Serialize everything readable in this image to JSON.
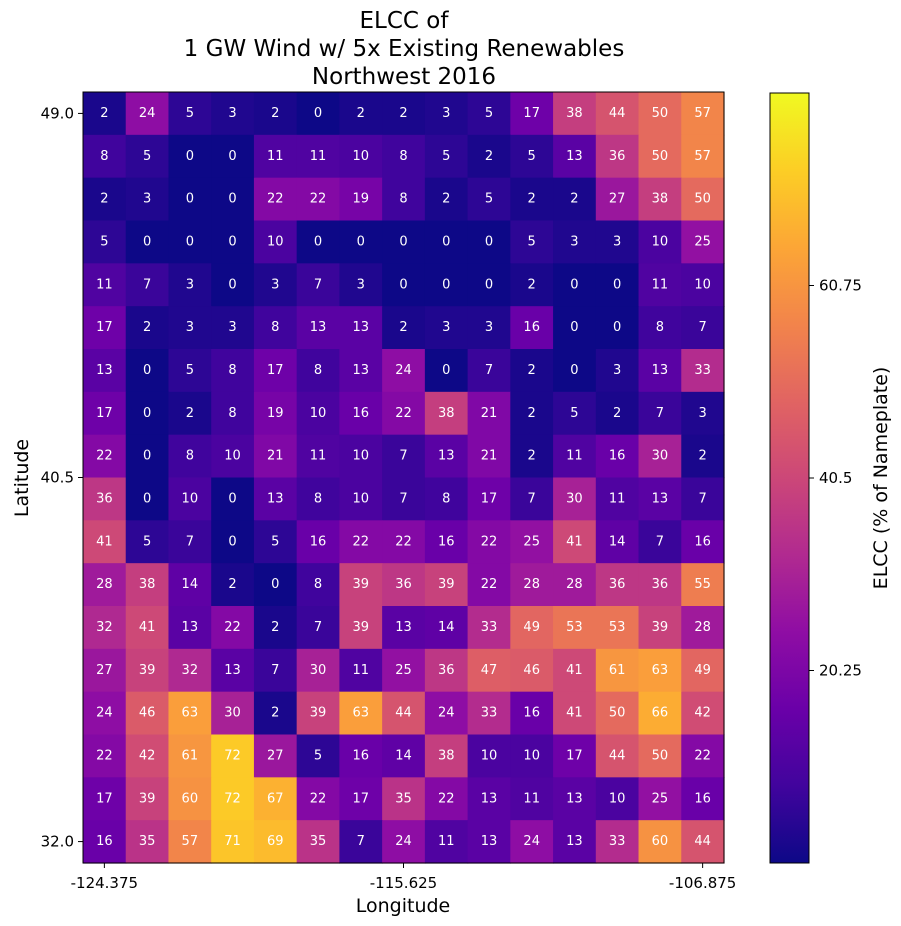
{
  "chart_data": {
    "type": "heatmap",
    "title": [
      "ELCC of",
      "1 GW Wind w/ 5x Existing Renewables",
      "Northwest 2016"
    ],
    "xlabel": "Longitude",
    "ylabel": "Latitude",
    "colorbar_label": "ELCC (% of Nameplate)",
    "colormap": "plasma",
    "color_range": [
      0,
      81
    ],
    "x_ticks": [
      "-124.375",
      "-115.625",
      "-106.875"
    ],
    "y_ticks": [
      "49.0",
      "40.5",
      "32.0"
    ],
    "colorbar_ticks": [
      "20.25",
      "40.5",
      "60.75"
    ],
    "rows": [
      [
        2,
        24,
        5,
        3,
        2,
        0,
        2,
        2,
        3,
        5,
        17,
        38,
        44,
        50,
        57
      ],
      [
        8,
        5,
        0,
        0,
        11,
        11,
        10,
        8,
        5,
        2,
        5,
        13,
        36,
        50,
        57
      ],
      [
        2,
        3,
        0,
        0,
        22,
        22,
        19,
        8,
        2,
        5,
        2,
        2,
        27,
        38,
        50
      ],
      [
        5,
        0,
        0,
        0,
        10,
        0,
        0,
        0,
        0,
        0,
        5,
        3,
        3,
        10,
        25
      ],
      [
        11,
        7,
        3,
        0,
        3,
        7,
        3,
        0,
        0,
        0,
        2,
        0,
        0,
        11,
        10
      ],
      [
        17,
        2,
        3,
        3,
        8,
        13,
        13,
        2,
        3,
        3,
        16,
        0,
        0,
        8,
        7
      ],
      [
        13,
        0,
        5,
        8,
        17,
        8,
        13,
        24,
        0,
        7,
        2,
        0,
        3,
        13,
        33
      ],
      [
        17,
        0,
        2,
        8,
        19,
        10,
        16,
        22,
        38,
        21,
        2,
        5,
        2,
        7,
        3
      ],
      [
        22,
        0,
        8,
        10,
        21,
        11,
        10,
        7,
        13,
        21,
        2,
        11,
        16,
        30,
        2
      ],
      [
        36,
        0,
        10,
        0,
        13,
        8,
        10,
        7,
        8,
        17,
        7,
        30,
        11,
        13,
        7
      ],
      [
        41,
        5,
        7,
        0,
        5,
        16,
        22,
        22,
        16,
        22,
        25,
        41,
        14,
        7,
        16
      ],
      [
        28,
        38,
        14,
        2,
        0,
        8,
        39,
        36,
        39,
        22,
        28,
        28,
        36,
        36,
        55
      ],
      [
        32,
        41,
        13,
        22,
        2,
        7,
        39,
        13,
        14,
        33,
        49,
        53,
        53,
        39,
        28
      ],
      [
        27,
        39,
        32,
        13,
        7,
        30,
        11,
        25,
        36,
        47,
        46,
        41,
        61,
        63,
        49
      ],
      [
        24,
        46,
        63,
        30,
        2,
        39,
        63,
        44,
        24,
        33,
        16,
        41,
        50,
        66,
        42
      ],
      [
        22,
        42,
        61,
        72,
        27,
        5,
        16,
        14,
        38,
        10,
        10,
        17,
        44,
        50,
        22
      ],
      [
        17,
        39,
        60,
        72,
        67,
        22,
        17,
        35,
        22,
        13,
        11,
        13,
        10,
        25,
        16
      ],
      [
        16,
        35,
        57,
        71,
        69,
        35,
        7,
        24,
        11,
        13,
        24,
        13,
        33,
        60,
        44
      ]
    ]
  }
}
